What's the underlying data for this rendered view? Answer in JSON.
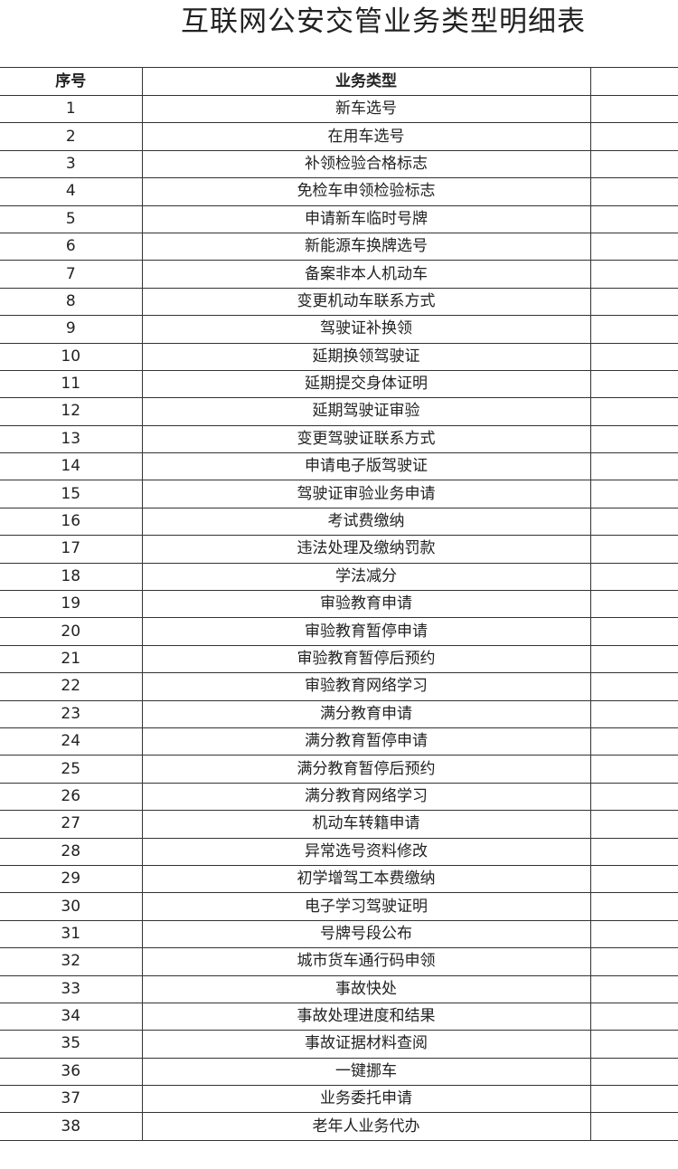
{
  "title": "互联网公安交管业务类型明细表",
  "table": {
    "headers": [
      "序号",
      "业务类型",
      ""
    ],
    "rows": [
      [
        "1",
        "新车选号"
      ],
      [
        "2",
        "在用车选号"
      ],
      [
        "3",
        "补领检验合格标志"
      ],
      [
        "4",
        "免检车申领检验标志"
      ],
      [
        "5",
        "申请新车临时号牌"
      ],
      [
        "6",
        "新能源车换牌选号"
      ],
      [
        "7",
        "备案非本人机动车"
      ],
      [
        "8",
        "变更机动车联系方式"
      ],
      [
        "9",
        "驾驶证补换领"
      ],
      [
        "10",
        "延期换领驾驶证"
      ],
      [
        "11",
        "延期提交身体证明"
      ],
      [
        "12",
        "延期驾驶证审验"
      ],
      [
        "13",
        "变更驾驶证联系方式"
      ],
      [
        "14",
        "申请电子版驾驶证"
      ],
      [
        "15",
        "驾驶证审验业务申请"
      ],
      [
        "16",
        "考试费缴纳"
      ],
      [
        "17",
        "违法处理及缴纳罚款"
      ],
      [
        "18",
        "学法减分"
      ],
      [
        "19",
        "审验教育申请"
      ],
      [
        "20",
        "审验教育暂停申请"
      ],
      [
        "21",
        "审验教育暂停后预约"
      ],
      [
        "22",
        "审验教育网络学习"
      ],
      [
        "23",
        "满分教育申请"
      ],
      [
        "24",
        "满分教育暂停申请"
      ],
      [
        "25",
        "满分教育暂停后预约"
      ],
      [
        "26",
        "满分教育网络学习"
      ],
      [
        "27",
        "机动车转籍申请"
      ],
      [
        "28",
        "异常选号资料修改"
      ],
      [
        "29",
        "初学增驾工本费缴纳"
      ],
      [
        "30",
        "电子学习驾驶证明"
      ],
      [
        "31",
        "号牌号段公布"
      ],
      [
        "32",
        "城市货车通行码申领"
      ],
      [
        "33",
        "事故快处"
      ],
      [
        "34",
        "事故处理进度和结果"
      ],
      [
        "35",
        "事故证据材料查阅"
      ],
      [
        "36",
        "一键挪车"
      ],
      [
        "37",
        "业务委托申请"
      ],
      [
        "38",
        "老年人业务代办"
      ]
    ]
  }
}
